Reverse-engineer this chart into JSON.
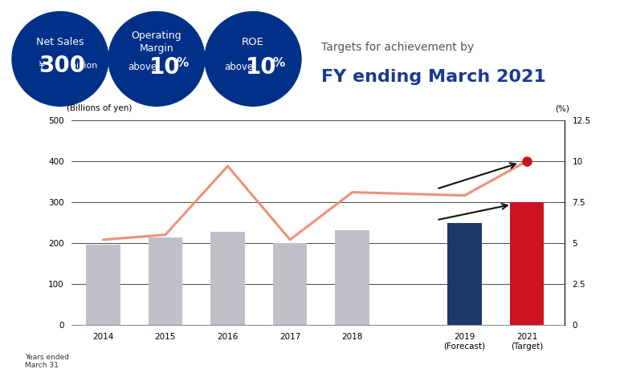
{
  "bar_values": [
    195,
    213,
    228,
    200,
    232,
    248,
    300
  ],
  "bar_colors": [
    "#c0c0c8",
    "#c0c0c8",
    "#c0c0c8",
    "#c0c0c8",
    "#c0c0c8",
    "#1b3a6b",
    "#cc1122"
  ],
  "line_values": [
    5.2,
    5.5,
    9.7,
    5.2,
    8.1,
    7.9,
    10.0
  ],
  "line_color": "#f0907a",
  "line_dot_color": "#cc1122",
  "ylim_left": [
    0,
    500
  ],
  "ylim_right": [
    0,
    12.5
  ],
  "yticks_left": [
    0,
    100,
    200,
    300,
    400,
    500
  ],
  "yticks_right": [
    0,
    2.5,
    5.0,
    7.5,
    10.0,
    12.5
  ],
  "left_label": "(Billions of yen)",
  "right_label": "(%)",
  "circle_color": "#003087",
  "arrow_color": "#111111",
  "title_text_gray": "Targets for achievement by",
  "title_text_blue": "FY ending March 2021",
  "title_blue_color": "#1a3a8f",
  "title_gray_color": "#555555",
  "x_labels": [
    "2014",
    "2015",
    "2016",
    "2017",
    "2018",
    "2019\n(Forecast)",
    "2021\n(Target)"
  ]
}
